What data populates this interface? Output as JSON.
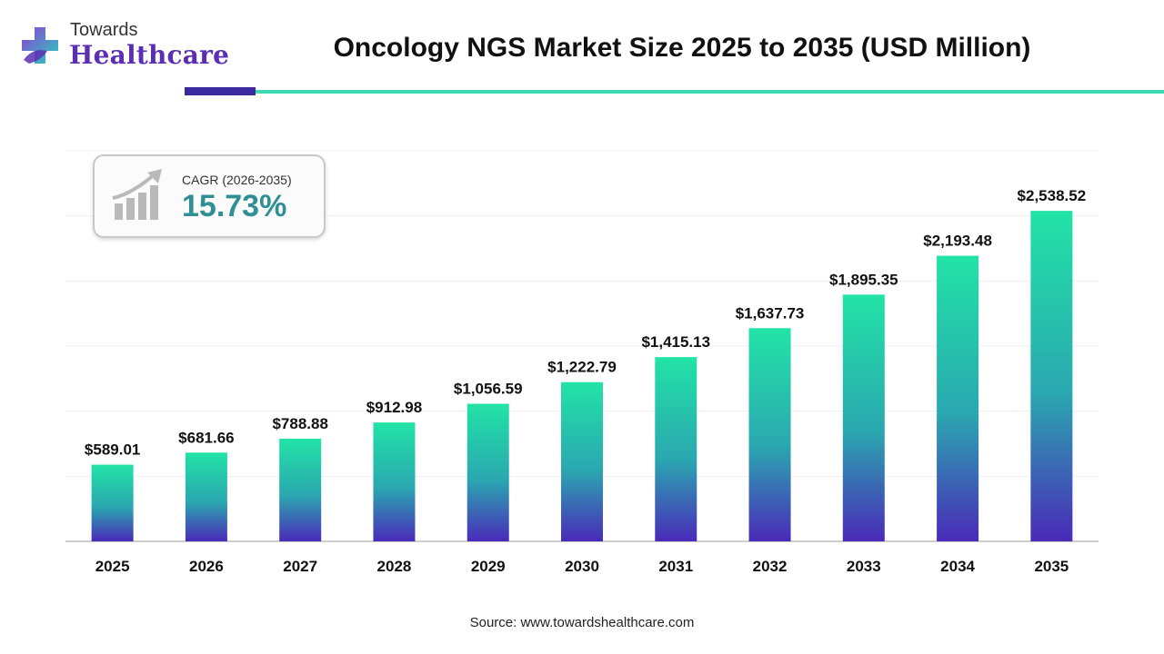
{
  "header": {
    "logo_top": "Towards",
    "logo_main": "Healthcare",
    "title": "Oncology NGS Market Size 2025 to 2035 (USD Million)"
  },
  "cagr": {
    "label": "CAGR (2026-2035)",
    "value": "15.73%"
  },
  "footer": {
    "source": "Source: www.towardshealthcare.com"
  },
  "colors": {
    "bar_top": "#22e3a6",
    "bar_bottom": "#4a2ab8",
    "accent_purple": "#5b2fb5",
    "accent_teal": "#3fd8b4",
    "cagr_value": "#2f8f95"
  },
  "chart_data": {
    "type": "bar",
    "title": "Oncology NGS Market Size 2025 to 2035 (USD Million)",
    "categories": [
      "2025",
      "2026",
      "2027",
      "2028",
      "2029",
      "2030",
      "2031",
      "2032",
      "2033",
      "2034",
      "2035"
    ],
    "values": [
      589.01,
      681.66,
      788.88,
      912.98,
      1056.59,
      1222.79,
      1415.13,
      1637.73,
      1895.35,
      2193.48,
      2538.52
    ],
    "value_labels": [
      "$589.01",
      "$681.66",
      "$788.88",
      "$912.98",
      "$1,056.59",
      "$1,222.79",
      "$1,415.13",
      "$1,637.73",
      "$1,895.35",
      "$2,193.48",
      "$2,538.52"
    ],
    "xlabel": "",
    "ylabel": "",
    "ylim": [
      0,
      3000
    ],
    "grid": true,
    "legend": "none"
  }
}
